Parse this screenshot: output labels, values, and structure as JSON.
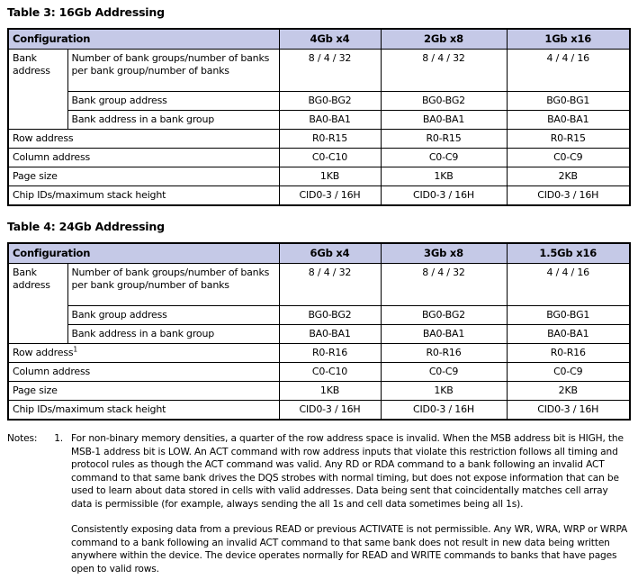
{
  "colors": {
    "header_row_bg": "#c5c9e7",
    "table_border": "#000000",
    "text": "#000000",
    "page_bg": "#ffffff"
  },
  "table3": {
    "title": "Table 3: 16Gb Addressing",
    "columns": [
      "Configuration",
      "4Gb x4",
      "2Gb x8",
      "1Gb x16"
    ],
    "bank_label": "Bank address",
    "rows": [
      {
        "label": "Number of bank groups/number of banks per bank group/number of banks",
        "values": [
          "8 / 4 / 32",
          "8 / 4 / 32",
          "4 / 4 / 16"
        ]
      },
      {
        "label": "Bank group address",
        "values": [
          "BG0-BG2",
          "BG0-BG2",
          "BG0-BG1"
        ]
      },
      {
        "label": "Bank address in a bank group",
        "values": [
          "BA0-BA1",
          "BA0-BA1",
          "BA0-BA1"
        ]
      },
      {
        "label": "Row address",
        "values": [
          "R0-R15",
          "R0-R15",
          "R0-R15"
        ]
      },
      {
        "label": "Column address",
        "values": [
          "C0-C10",
          "C0-C9",
          "C0-C9"
        ]
      },
      {
        "label": "Page size",
        "values": [
          "1KB",
          "1KB",
          "2KB"
        ]
      },
      {
        "label": "Chip IDs/maximum stack height",
        "values": [
          "CID0-3 / 16H",
          "CID0-3 / 16H",
          "CID0-3 / 16H"
        ]
      }
    ]
  },
  "table4": {
    "title": "Table 4: 24Gb Addressing",
    "columns": [
      "Configuration",
      "6Gb x4",
      "3Gb x8",
      "1.5Gb x16"
    ],
    "bank_label": "Bank address",
    "rows": [
      {
        "label": "Number of bank groups/number of banks per bank group/number of banks",
        "values": [
          "8 / 4 / 32",
          "8 / 4 / 32",
          "4 / 4 / 16"
        ]
      },
      {
        "label": "Bank group address",
        "values": [
          "BG0-BG2",
          "BG0-BG2",
          "BG0-BG1"
        ]
      },
      {
        "label": "Bank address in a bank group",
        "values": [
          "BA0-BA1",
          "BA0-BA1",
          "BA0-BA1"
        ]
      },
      {
        "label": "Row address",
        "sup": "1",
        "values": [
          "R0-R16",
          "R0-R16",
          "R0-R16"
        ]
      },
      {
        "label": "Column address",
        "values": [
          "C0-C10",
          "C0-C9",
          "C0-C9"
        ]
      },
      {
        "label": "Page size",
        "values": [
          "1KB",
          "1KB",
          "2KB"
        ]
      },
      {
        "label": "Chip IDs/maximum stack height",
        "values": [
          "CID0-3 / 16H",
          "CID0-3 / 16H",
          "CID0-3 / 16H"
        ]
      }
    ]
  },
  "notes": {
    "label": "Notes:",
    "number": "1.",
    "paragraphs": [
      "For non-binary memory densities, a quarter of the row address space is invalid. When the MSB address bit is HIGH, the MSB-1 address bit is LOW. An ACT command with row address inputs that violate this restriction follows all timing and protocol rules as though the ACT command was valid. Any RD or RDA command to a bank following an invalid ACT command to that same bank drives the DQS strobes with normal timing, but does not expose information that can be used to learn about data stored in cells with valid addresses. Data being sent that coincidentally matches cell array data is permissible (for example, always sending the all 1s and cell data sometimes being all 1s).",
      "Consistently exposing data from a previous READ or previous ACTIVATE is not permissible. Any WR, WRA, WRP or WRPA command to a bank following an invalid ACT command to that same bank does not result in new data being written anywhere within the device. The device operates normally for READ and WRITE commands to banks that have pages open to valid rows."
    ]
  }
}
